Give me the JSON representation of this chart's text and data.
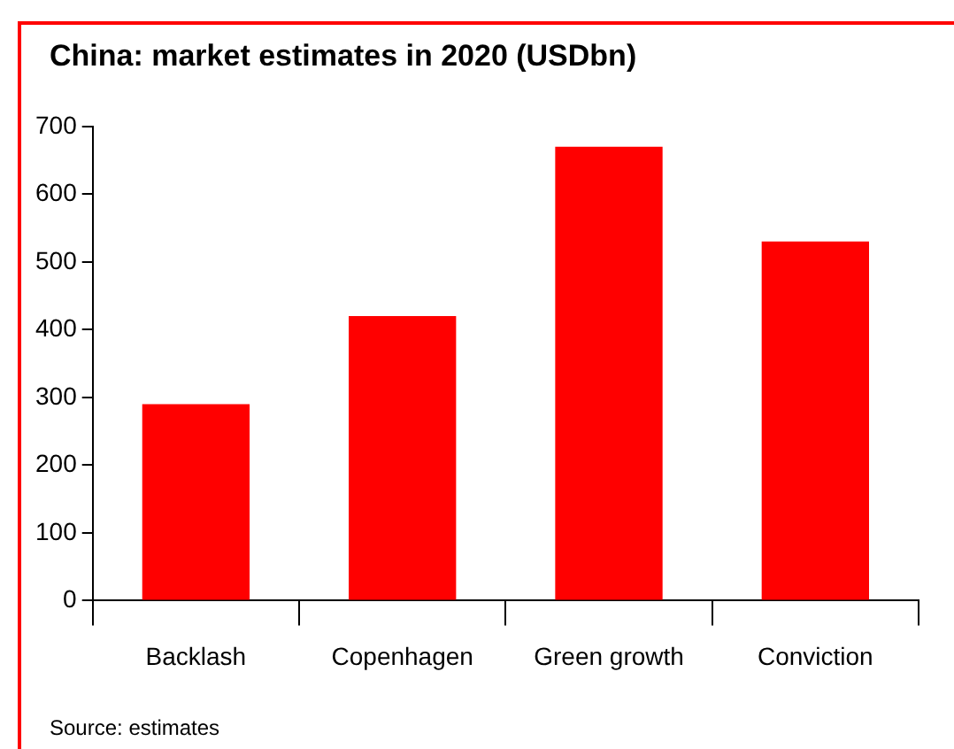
{
  "chart_data": {
    "type": "bar",
    "title": "China: market estimates in 2020 (USDbn)",
    "categories": [
      "Backlash",
      "Copenhagen",
      "Green growth",
      "Conviction"
    ],
    "values": [
      290,
      420,
      670,
      530
    ],
    "color": "#ff0000",
    "ylim": [
      0,
      700
    ],
    "yticks": [
      0,
      100,
      200,
      300,
      400,
      500,
      600,
      700
    ],
    "grid": false,
    "legend": false,
    "annotations": [
      "Source: estimates"
    ]
  }
}
